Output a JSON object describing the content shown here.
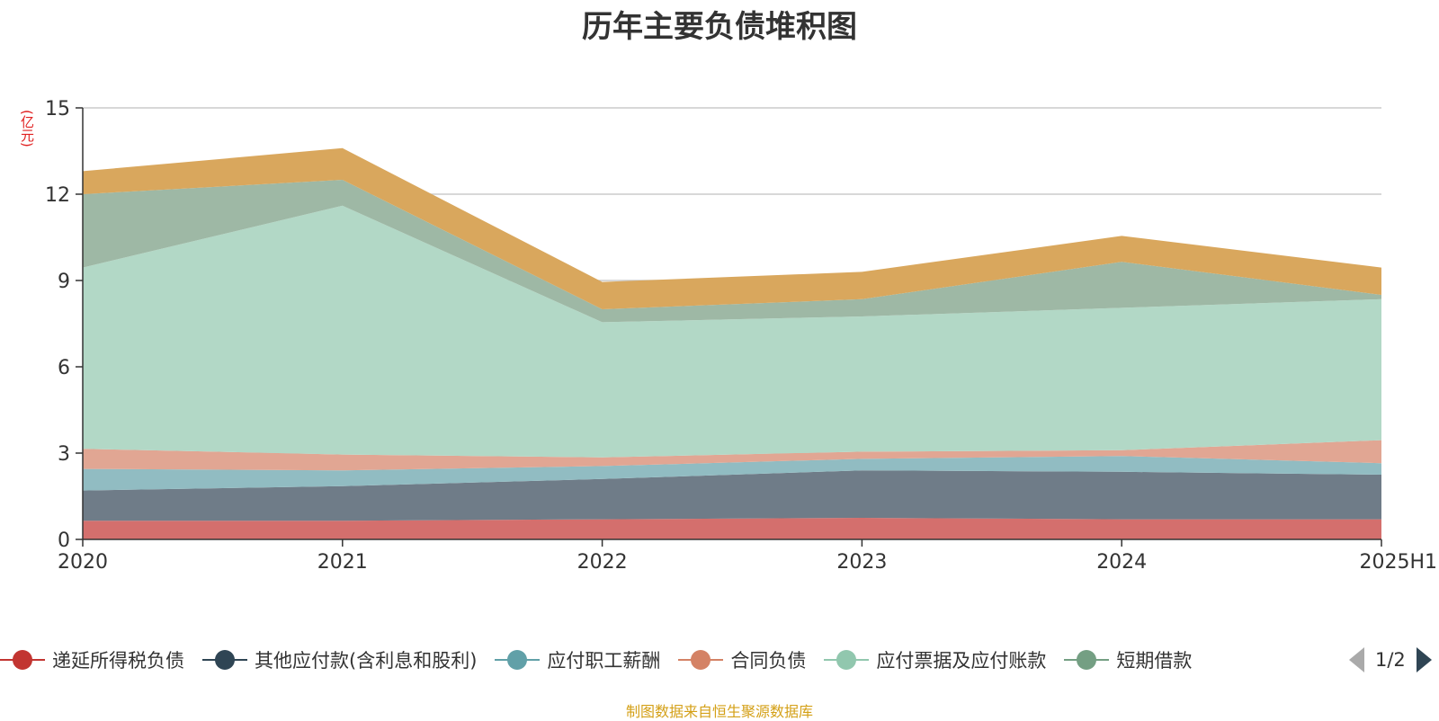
{
  "title": "历年主要负债堆积图",
  "unit": "(亿元)",
  "footer": "制图数据来自恒生聚源数据库",
  "pager": {
    "text": "1/2"
  },
  "legend": [
    {
      "name": "递延所得税负债",
      "color": "#c23531"
    },
    {
      "name": "其他应付款(含利息和股利)",
      "color": "#2f4554"
    },
    {
      "name": "应付职工薪酬",
      "color": "#61a0a8"
    },
    {
      "name": "合同负债",
      "color": "#d48265"
    },
    {
      "name": "应付票据及应付账款",
      "color": "#91c7ae"
    },
    {
      "name": "短期借款",
      "color": "#749f83"
    }
  ],
  "chart_data": {
    "type": "area",
    "stacked": true,
    "categories": [
      "2020",
      "2021",
      "2022",
      "2023",
      "2024",
      "2025H1"
    ],
    "ylim": [
      0,
      15
    ],
    "yticks": [
      0,
      3,
      6,
      9,
      12,
      15
    ],
    "grid": true,
    "legend_position": "bottom",
    "series": [
      {
        "name": "递延所得税负债",
        "color": "#d46f6d",
        "values": [
          0.65,
          0.65,
          0.7,
          0.75,
          0.7,
          0.7
        ]
      },
      {
        "name": "其他应付款(含利息和股利)",
        "color": "#6f7c88",
        "values": [
          1.05,
          1.2,
          1.4,
          1.65,
          1.65,
          1.55
        ]
      },
      {
        "name": "应付职工薪酬",
        "color": "#91bcc2",
        "values": [
          0.75,
          0.55,
          0.45,
          0.4,
          0.55,
          0.4
        ]
      },
      {
        "name": "合同负债",
        "color": "#e1a693",
        "values": [
          0.7,
          0.55,
          0.3,
          0.25,
          0.2,
          0.8
        ]
      },
      {
        "name": "应付票据及应付账款",
        "color": "#b2d8c6",
        "values": [
          6.3,
          8.65,
          4.7,
          4.7,
          4.95,
          4.9
        ]
      },
      {
        "name": "短期借款",
        "color": "#9eb8a5",
        "values": [
          2.55,
          0.9,
          0.45,
          0.6,
          1.6,
          0.15
        ]
      },
      {
        "name": "",
        "color": "#d9a75d",
        "values": [
          0.8,
          1.1,
          0.95,
          0.95,
          0.9,
          0.95
        ]
      }
    ]
  }
}
